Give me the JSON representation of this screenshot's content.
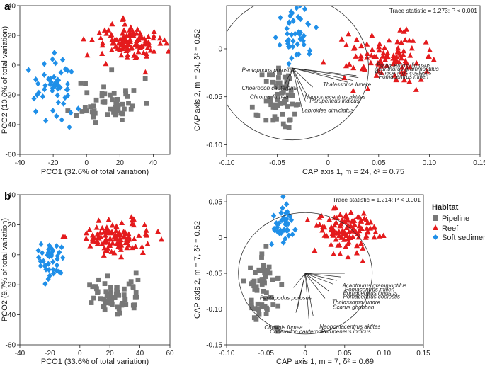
{
  "colors": {
    "Pipeline": "#777777",
    "Reef": "#e41a1c",
    "Soft sediment": "#1f8fe8"
  },
  "legend": {
    "title": "Habitat",
    "items": [
      "Pipeline",
      "Reef",
      "Soft sediment"
    ]
  },
  "panels": {
    "a": "a",
    "b": "b"
  },
  "chart_data": [
    {
      "id": "a-pco",
      "type": "scatter",
      "xlabel": "PCO1 (32.6% of total variation)",
      "ylabel": "PCO2 (10.6% of total variation)",
      "xlim": [
        -40,
        50
      ],
      "ylim": [
        -60,
        40
      ],
      "xticks": [
        "-40",
        "-20",
        "0",
        "20",
        "40"
      ],
      "yticks": [
        "40",
        "20",
        "0",
        "-20",
        "-40",
        "-60"
      ],
      "series": [
        {
          "name": "Pipeline",
          "marker": "square",
          "center": [
            13,
            -25
          ],
          "spread": [
            12,
            10
          ],
          "n": 55,
          "seed": 11
        },
        {
          "name": "Reef",
          "marker": "triangle",
          "center": [
            28,
            15
          ],
          "spread": [
            14,
            8
          ],
          "n": 110,
          "seed": 12
        },
        {
          "name": "Soft sediment",
          "marker": "diamond",
          "center": [
            -20,
            -15
          ],
          "spread": [
            8,
            14
          ],
          "n": 50,
          "seed": 13
        }
      ]
    },
    {
      "id": "a-cap",
      "type": "scatter",
      "xlabel": "CAP axis 1, m = 24, δ² = 0.75",
      "ylabel": "CAP axis 2, m = 24, δ² = 0.52",
      "xlim": [
        -0.1,
        0.15
      ],
      "ylim": [
        -0.11,
        0.045
      ],
      "xticks": [
        "-0.10",
        "-0.05",
        "0",
        "0.05",
        "0.10",
        "0.15"
      ],
      "yticks": [
        "0",
        "-0.05",
        "-0.10"
      ],
      "ytick_values": [
        0,
        -0.05,
        -0.1
      ],
      "annotation": "Trace statistic = 1.273; P < 0.001",
      "circle": {
        "cx": -0.035,
        "cy": -0.02,
        "r": 0.075
      },
      "vector_origin": [
        -0.035,
        -0.02
      ],
      "vectors": [
        {
          "label": "Pomacentrus limosus",
          "end": [
            0.028,
            -0.028
          ],
          "label_at": [
            0.048,
            -0.019
          ]
        },
        {
          "label": "Acanthurus grammoptilus",
          "end": [
            0.03,
            -0.03
          ],
          "label_at": [
            0.046,
            -0.023
          ]
        },
        {
          "label": "Pomacentrus coelestis",
          "end": [
            0.025,
            -0.033
          ],
          "label_at": [
            0.046,
            -0.027
          ]
        },
        {
          "label": "Pomacentrus milleri",
          "end": [
            0.02,
            -0.035
          ],
          "label_at": [
            0.05,
            -0.031
          ]
        },
        {
          "label": "Thalassoma lunare",
          "end": [
            -0.015,
            -0.04
          ],
          "label_at": [
            -0.005,
            -0.039
          ]
        },
        {
          "label": "Neopomacentrus aktites",
          "end": [
            -0.02,
            -0.05
          ],
          "label_at": [
            -0.023,
            -0.052
          ]
        },
        {
          "label": "Parupeneus indicus",
          "end": [
            -0.022,
            -0.055
          ],
          "label_at": [
            -0.018,
            -0.056
          ]
        },
        {
          "label": "Labroides dimidiatus",
          "end": [
            -0.025,
            -0.065
          ],
          "label_at": [
            -0.026,
            -0.066
          ]
        },
        {
          "label": "Pentapodus porosus",
          "end": [
            -0.04,
            -0.02
          ],
          "label_at": [
            -0.085,
            -0.024
          ]
        },
        {
          "label": "Choerodon cauteroma",
          "end": [
            -0.042,
            -0.036
          ],
          "label_at": [
            -0.085,
            -0.043
          ]
        },
        {
          "label": "Chromis fumea",
          "end": [
            -0.04,
            -0.04
          ],
          "label_at": [
            -0.077,
            -0.052
          ]
        }
      ],
      "series": [
        {
          "name": "Pipeline",
          "marker": "square",
          "center": [
            -0.045,
            -0.055
          ],
          "spread": [
            0.012,
            0.02
          ],
          "n": 60,
          "seed": 21
        },
        {
          "name": "Reef",
          "marker": "triangle",
          "center": [
            0.055,
            -0.01
          ],
          "spread": [
            0.025,
            0.015
          ],
          "n": 100,
          "seed": 22
        },
        {
          "name": "Soft sediment",
          "marker": "diamond",
          "center": [
            -0.03,
            0.015
          ],
          "spread": [
            0.01,
            0.015
          ],
          "n": 45,
          "seed": 23
        }
      ]
    },
    {
      "id": "b-pco",
      "type": "scatter",
      "xlabel": "PCO1 (33.6% of total variation)",
      "ylabel": "PCO2 (9.7% of total variation)",
      "xlim": [
        -40,
        60
      ],
      "ylim": [
        -60,
        40
      ],
      "xticks": [
        "-40",
        "-20",
        "0",
        "20",
        "40",
        "60"
      ],
      "yticks": [
        "40",
        "20",
        "0",
        "-20",
        "-40",
        "-60"
      ],
      "series": [
        {
          "name": "Pipeline",
          "marker": "square",
          "center": [
            22,
            -28
          ],
          "spread": [
            12,
            8
          ],
          "n": 60,
          "seed": 31
        },
        {
          "name": "Reef",
          "marker": "triangle",
          "center": [
            22,
            12
          ],
          "spread": [
            15,
            7
          ],
          "n": 110,
          "seed": 32
        },
        {
          "name": "Soft sediment",
          "marker": "diamond",
          "center": [
            -20,
            -5
          ],
          "spread": [
            5,
            8
          ],
          "n": 40,
          "seed": 33
        }
      ]
    },
    {
      "id": "b-cap",
      "type": "scatter",
      "xlabel": "CAP axis 1, m = 7, δ² = 0.69",
      "ylabel": "CAP axis 2, m = 7, δ² = 0.52",
      "xlim": [
        -0.1,
        0.15
      ],
      "ylim": [
        -0.15,
        0.06
      ],
      "xticks": [
        "-0.10",
        "-0.05",
        "0",
        "0.05",
        "0.10",
        "0.15"
      ],
      "yticks": [
        "0.05",
        "0",
        "-0.05",
        "-0.10",
        "-0.15"
      ],
      "ytick_values": [
        0.05,
        0,
        -0.05,
        -0.1,
        -0.15
      ],
      "annotation": "Trace statistic = 1.214; P < 0.001",
      "circle": {
        "cx": 0,
        "cy": -0.05,
        "r": 0.085
      },
      "vector_origin": [
        0,
        -0.05
      ],
      "vectors": [
        {
          "label": "Acanthurus grammoptilus",
          "end": [
            0.05,
            -0.05
          ],
          "label_at": [
            0.047,
            -0.07
          ]
        },
        {
          "label": "Pomacentrus milleri",
          "end": [
            0.045,
            -0.055
          ],
          "label_at": [
            0.05,
            -0.075
          ]
        },
        {
          "label": "Pomacentrus limosus",
          "end": [
            0.04,
            -0.06
          ],
          "label_at": [
            0.048,
            -0.08
          ]
        },
        {
          "label": "Pomacentrus coelestis",
          "end": [
            0.035,
            -0.065
          ],
          "label_at": [
            0.048,
            -0.085
          ]
        },
        {
          "label": "Thalassoma lunare",
          "end": [
            0.03,
            -0.075
          ],
          "label_at": [
            0.034,
            -0.093
          ]
        },
        {
          "label": "Scarus ghobban",
          "end": [
            0.025,
            -0.085
          ],
          "label_at": [
            0.035,
            -0.1
          ]
        },
        {
          "label": "Neopomacentrus aktites",
          "end": [
            0.01,
            -0.11
          ],
          "label_at": [
            0.018,
            -0.127
          ]
        },
        {
          "label": "Parupeneus indicus",
          "end": [
            0.005,
            -0.12
          ],
          "label_at": [
            0.02,
            -0.134
          ]
        },
        {
          "label": "Pentapodus porosus",
          "end": [
            -0.015,
            -0.07
          ],
          "label_at": [
            -0.058,
            -0.087
          ]
        },
        {
          "label": "Chromis fumea",
          "end": [
            -0.01,
            -0.1
          ],
          "label_at": [
            -0.052,
            -0.128
          ]
        },
        {
          "label": "Choerodon cauteroma",
          "end": [
            -0.012,
            -0.105
          ],
          "label_at": [
            -0.045,
            -0.134
          ]
        }
      ],
      "series": [
        {
          "name": "Pipeline",
          "marker": "square",
          "center": [
            -0.05,
            -0.07
          ],
          "spread": [
            0.015,
            0.03
          ],
          "n": 60,
          "seed": 41
        },
        {
          "name": "Reef",
          "marker": "triangle",
          "center": [
            0.05,
            0.01
          ],
          "spread": [
            0.025,
            0.02
          ],
          "n": 110,
          "seed": 42
        },
        {
          "name": "Soft sediment",
          "marker": "diamond",
          "center": [
            -0.03,
            0.02
          ],
          "spread": [
            0.01,
            0.02
          ],
          "n": 40,
          "seed": 43
        }
      ]
    }
  ]
}
